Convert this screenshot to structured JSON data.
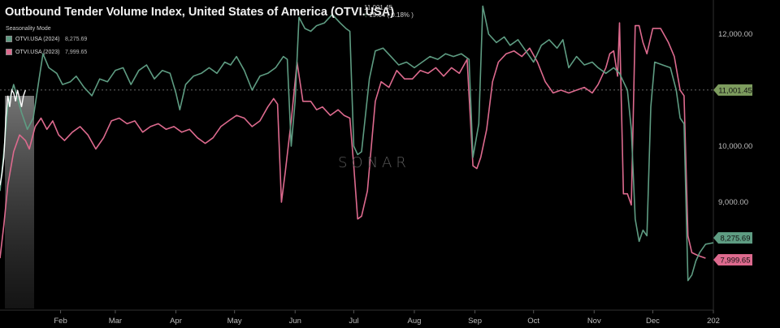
{
  "title": "Outbound Tender Volume Index, United States of America (OTVI.USA)",
  "last_price": "11,001.45",
  "last_change": "19.64 ( 0.18% )",
  "mode_label": "Seasonality Mode",
  "watermark": "SONAR",
  "colors": {
    "series_2024": "#5e9c82",
    "series_2023": "#dd6a8e",
    "ref_line": "#7d9c5e"
  },
  "chart_data": {
    "type": "line",
    "title": "Outbound Tender Volume Index, United States of America (OTVI.USA)",
    "x_unit": "day_of_year",
    "xlim": [
      1,
      366
    ],
    "ylim": [
      7500,
      12600
    ],
    "y_ticks": [
      9000,
      10000,
      12000
    ],
    "y_tick_labels": [
      "9,000.00",
      "10,000.00",
      "12,000.00"
    ],
    "x_ticks": [
      {
        "day": 32,
        "label": "Feb"
      },
      {
        "day": 60,
        "label": "Mar"
      },
      {
        "day": 91,
        "label": "Apr"
      },
      {
        "day": 121,
        "label": "May"
      },
      {
        "day": 152,
        "label": "Jun"
      },
      {
        "day": 182,
        "label": "Jul"
      },
      {
        "day": 213,
        "label": "Aug"
      },
      {
        "day": 244,
        "label": "Sep"
      },
      {
        "day": 274,
        "label": "Oct"
      },
      {
        "day": 305,
        "label": "Nov"
      },
      {
        "day": 335,
        "label": "Dec"
      },
      {
        "day": 366,
        "label": "202"
      }
    ],
    "reference_line": {
      "value": 11001.45,
      "label": "11,001.45"
    },
    "series": [
      {
        "name": "OTVI.USA (2024)",
        "last_label": "8,275.69",
        "points": [
          [
            1,
            9200
          ],
          [
            3,
            9900
          ],
          [
            5,
            10700
          ],
          [
            8,
            11100
          ],
          [
            12,
            10600
          ],
          [
            15,
            10300
          ],
          [
            18,
            10500
          ],
          [
            21,
            11200
          ],
          [
            23,
            11650
          ],
          [
            26,
            11400
          ],
          [
            30,
            11300
          ],
          [
            33,
            11100
          ],
          [
            37,
            11150
          ],
          [
            40,
            11250
          ],
          [
            44,
            11050
          ],
          [
            48,
            10900
          ],
          [
            52,
            11200
          ],
          [
            56,
            11150
          ],
          [
            60,
            11350
          ],
          [
            64,
            11400
          ],
          [
            68,
            11100
          ],
          [
            72,
            11350
          ],
          [
            76,
            11450
          ],
          [
            80,
            11200
          ],
          [
            84,
            11350
          ],
          [
            88,
            11300
          ],
          [
            91,
            10950
          ],
          [
            93,
            10650
          ],
          [
            96,
            11100
          ],
          [
            100,
            11250
          ],
          [
            104,
            11300
          ],
          [
            108,
            11400
          ],
          [
            112,
            11300
          ],
          [
            116,
            11500
          ],
          [
            119,
            11450
          ],
          [
            122,
            11600
          ],
          [
            126,
            11350
          ],
          [
            130,
            11000
          ],
          [
            134,
            11250
          ],
          [
            138,
            11300
          ],
          [
            142,
            11400
          ],
          [
            146,
            11600
          ],
          [
            148,
            11550
          ],
          [
            150,
            10000
          ],
          [
            152,
            10800
          ],
          [
            154,
            12300
          ],
          [
            157,
            12100
          ],
          [
            160,
            12050
          ],
          [
            163,
            12150
          ],
          [
            167,
            12200
          ],
          [
            171,
            12350
          ],
          [
            175,
            12200
          ],
          [
            178,
            12100
          ],
          [
            180,
            12050
          ],
          [
            182,
            10000
          ],
          [
            184,
            9850
          ],
          [
            186,
            9900
          ],
          [
            190,
            11200
          ],
          [
            193,
            11700
          ],
          [
            197,
            11750
          ],
          [
            201,
            11600
          ],
          [
            205,
            11450
          ],
          [
            209,
            11500
          ],
          [
            213,
            11400
          ],
          [
            217,
            11500
          ],
          [
            221,
            11600
          ],
          [
            225,
            11550
          ],
          [
            229,
            11650
          ],
          [
            233,
            11600
          ],
          [
            237,
            11650
          ],
          [
            241,
            11550
          ],
          [
            243,
            9800
          ],
          [
            246,
            10400
          ],
          [
            248,
            12500
          ],
          [
            251,
            12000
          ],
          [
            255,
            11850
          ],
          [
            259,
            11950
          ],
          [
            262,
            11800
          ],
          [
            266,
            11900
          ],
          [
            270,
            11700
          ],
          [
            274,
            11500
          ],
          [
            278,
            11800
          ],
          [
            282,
            11900
          ],
          [
            286,
            11750
          ],
          [
            289,
            11900
          ],
          [
            292,
            11400
          ],
          [
            296,
            11600
          ],
          [
            300,
            11450
          ],
          [
            304,
            11500
          ],
          [
            307,
            11400
          ],
          [
            311,
            11300
          ],
          [
            315,
            11400
          ],
          [
            318,
            11300
          ],
          [
            320,
            11150
          ],
          [
            322,
            11000
          ],
          [
            324,
            10300
          ],
          [
            326,
            8700
          ],
          [
            328,
            8300
          ],
          [
            330,
            8500
          ],
          [
            332,
            8400
          ],
          [
            334,
            10700
          ],
          [
            336,
            11500
          ],
          [
            340,
            11450
          ],
          [
            344,
            11400
          ],
          [
            347,
            11000
          ],
          [
            349,
            10500
          ],
          [
            351,
            10400
          ],
          [
            353,
            7600
          ],
          [
            355,
            7700
          ],
          [
            357,
            7950
          ],
          [
            359,
            8100
          ],
          [
            362,
            8250
          ],
          [
            366,
            8275.69
          ]
        ]
      },
      {
        "name": "OTVI.USA (2023)",
        "last_label": "7,999.65",
        "points": [
          [
            1,
            8000
          ],
          [
            3,
            8600
          ],
          [
            5,
            9300
          ],
          [
            8,
            9900
          ],
          [
            11,
            10200
          ],
          [
            14,
            10100
          ],
          [
            16,
            9950
          ],
          [
            19,
            10350
          ],
          [
            22,
            10500
          ],
          [
            25,
            10300
          ],
          [
            28,
            10450
          ],
          [
            31,
            10200
          ],
          [
            34,
            10100
          ],
          [
            38,
            10250
          ],
          [
            42,
            10350
          ],
          [
            46,
            10200
          ],
          [
            50,
            9950
          ],
          [
            54,
            10150
          ],
          [
            58,
            10450
          ],
          [
            62,
            10500
          ],
          [
            66,
            10400
          ],
          [
            70,
            10450
          ],
          [
            74,
            10250
          ],
          [
            78,
            10350
          ],
          [
            82,
            10400
          ],
          [
            86,
            10300
          ],
          [
            90,
            10350
          ],
          [
            94,
            10250
          ],
          [
            98,
            10300
          ],
          [
            102,
            10150
          ],
          [
            106,
            10050
          ],
          [
            110,
            10150
          ],
          [
            114,
            10350
          ],
          [
            118,
            10450
          ],
          [
            122,
            10550
          ],
          [
            126,
            10500
          ],
          [
            130,
            10350
          ],
          [
            134,
            10450
          ],
          [
            138,
            10700
          ],
          [
            141,
            10850
          ],
          [
            143,
            10750
          ],
          [
            145,
            9000
          ],
          [
            147,
            9550
          ],
          [
            150,
            10450
          ],
          [
            153,
            11500
          ],
          [
            156,
            10800
          ],
          [
            160,
            10800
          ],
          [
            163,
            10650
          ],
          [
            166,
            10700
          ],
          [
            170,
            10550
          ],
          [
            174,
            10650
          ],
          [
            177,
            10550
          ],
          [
            180,
            10500
          ],
          [
            182,
            9650
          ],
          [
            184,
            8700
          ],
          [
            186,
            8750
          ],
          [
            189,
            9200
          ],
          [
            193,
            10800
          ],
          [
            196,
            11150
          ],
          [
            200,
            11050
          ],
          [
            204,
            11350
          ],
          [
            208,
            11200
          ],
          [
            212,
            11200
          ],
          [
            216,
            11350
          ],
          [
            220,
            11300
          ],
          [
            224,
            11400
          ],
          [
            228,
            11250
          ],
          [
            232,
            11400
          ],
          [
            236,
            11300
          ],
          [
            240,
            11550
          ],
          [
            243,
            9650
          ],
          [
            245,
            9600
          ],
          [
            247,
            9800
          ],
          [
            250,
            10300
          ],
          [
            253,
            11150
          ],
          [
            256,
            11500
          ],
          [
            260,
            11650
          ],
          [
            264,
            11700
          ],
          [
            268,
            11600
          ],
          [
            272,
            11750
          ],
          [
            276,
            11500
          ],
          [
            280,
            11150
          ],
          [
            284,
            10950
          ],
          [
            288,
            11000
          ],
          [
            292,
            10950
          ],
          [
            296,
            11000
          ],
          [
            300,
            11050
          ],
          [
            304,
            10950
          ],
          [
            307,
            11100
          ],
          [
            311,
            11400
          ],
          [
            313,
            11650
          ],
          [
            315,
            11700
          ],
          [
            317,
            11250
          ],
          [
            318,
            12200
          ],
          [
            320,
            9150
          ],
          [
            322,
            9150
          ],
          [
            324,
            8950
          ],
          [
            326,
            12150
          ],
          [
            328,
            12150
          ],
          [
            330,
            11850
          ],
          [
            332,
            11650
          ],
          [
            335,
            12100
          ],
          [
            339,
            12100
          ],
          [
            343,
            11850
          ],
          [
            346,
            11600
          ],
          [
            349,
            11000
          ],
          [
            351,
            10900
          ],
          [
            353,
            8400
          ],
          [
            355,
            8100
          ],
          [
            358,
            8050
          ],
          [
            362,
            7999.65
          ]
        ]
      }
    ]
  }
}
